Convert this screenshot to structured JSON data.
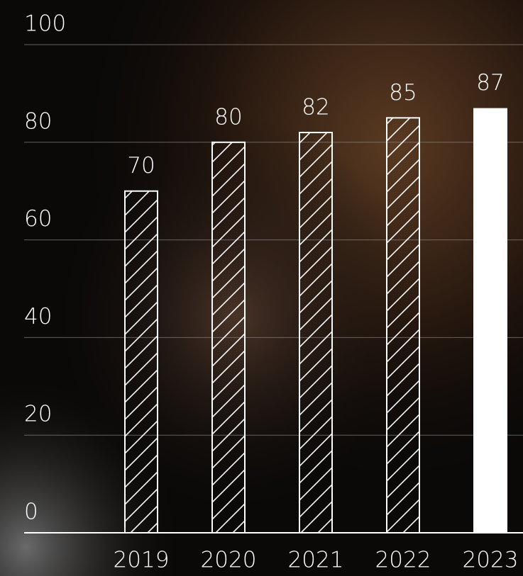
{
  "chart_data": {
    "type": "bar",
    "categories": [
      "2019",
      "2020",
      "2021",
      "2022",
      "2023"
    ],
    "values": [
      70,
      80,
      82,
      85,
      87
    ],
    "styles": [
      "hatched",
      "hatched",
      "hatched",
      "hatched",
      "solid"
    ],
    "color": "#ffffff",
    "ylim": [
      0,
      100
    ],
    "yticks": [
      0,
      20,
      40,
      60,
      80,
      100
    ],
    "grid": true
  }
}
